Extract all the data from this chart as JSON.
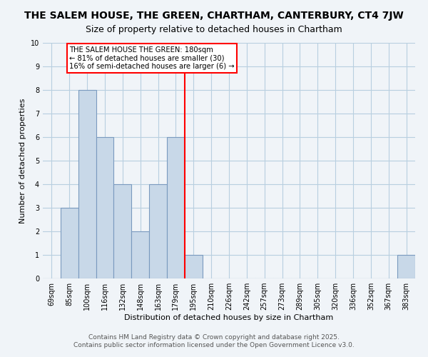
{
  "title": "THE SALEM HOUSE, THE GREEN, CHARTHAM, CANTERBURY, CT4 7JW",
  "subtitle": "Size of property relative to detached houses in Chartham",
  "xlabel": "Distribution of detached houses by size in Chartham",
  "ylabel": "Number of detached properties",
  "footer1": "Contains HM Land Registry data © Crown copyright and database right 2025.",
  "footer2": "Contains public sector information licensed under the Open Government Licence v3.0.",
  "bar_labels": [
    "69sqm",
    "85sqm",
    "100sqm",
    "116sqm",
    "132sqm",
    "148sqm",
    "163sqm",
    "179sqm",
    "195sqm",
    "210sqm",
    "226sqm",
    "242sqm",
    "257sqm",
    "273sqm",
    "289sqm",
    "305sqm",
    "320sqm",
    "336sqm",
    "352sqm",
    "367sqm",
    "383sqm"
  ],
  "bar_values": [
    0,
    3,
    8,
    6,
    4,
    2,
    4,
    6,
    1,
    0,
    0,
    0,
    0,
    0,
    0,
    0,
    0,
    0,
    0,
    0,
    1
  ],
  "bar_color": "#c8d8e8",
  "bar_edge_color": "#7a9abf",
  "ylim": [
    0,
    10
  ],
  "yticks": [
    0,
    1,
    2,
    3,
    4,
    5,
    6,
    7,
    8,
    9,
    10
  ],
  "red_line_x": 7.5,
  "annotation_line1": "THE SALEM HOUSE THE GREEN: 180sqm",
  "annotation_line2": "← 81% of detached houses are smaller (30)",
  "annotation_line3": "16% of semi-detached houses are larger (6) →",
  "background_color": "#f0f4f8",
  "grid_color": "#b8cfe0",
  "title_fontsize": 10,
  "subtitle_fontsize": 9,
  "tick_fontsize": 7,
  "axis_label_fontsize": 8,
  "footer_fontsize": 6.5
}
